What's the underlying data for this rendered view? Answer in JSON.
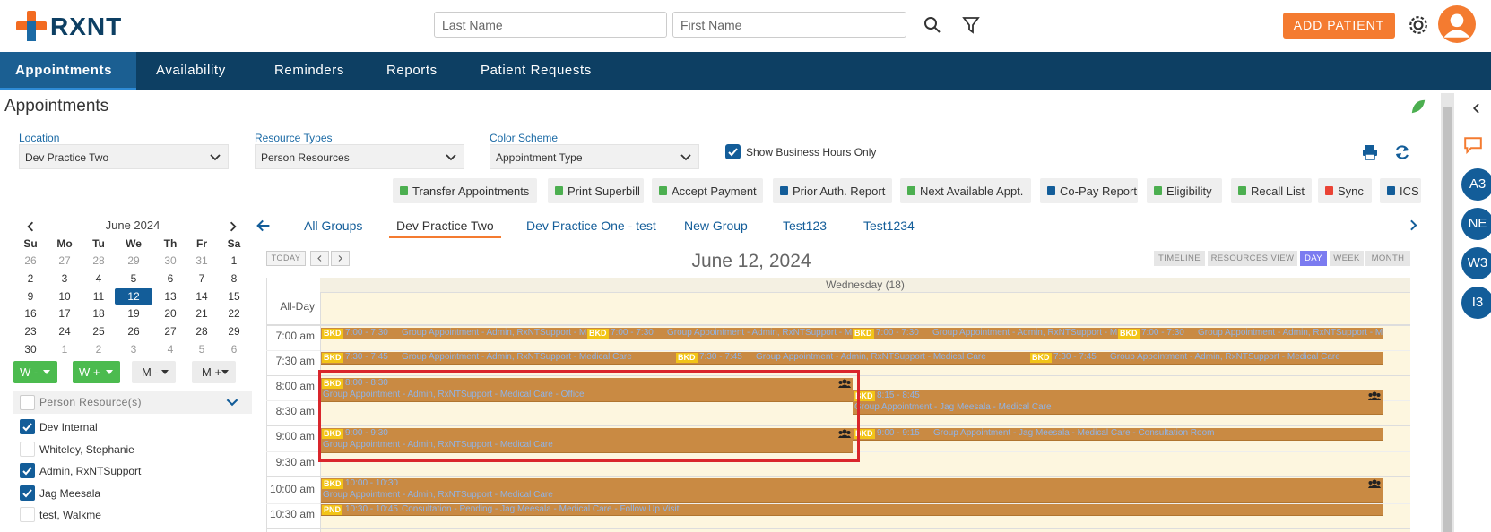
{
  "header": {
    "logo": "RXNT",
    "search_last": "Last Name",
    "search_first": "First Name",
    "add_patient": "ADD PATIENT"
  },
  "nav": [
    {
      "label": "Appointments",
      "active": true
    },
    {
      "label": "Availability",
      "active": false
    },
    {
      "label": "Reminders",
      "active": false
    },
    {
      "label": "Reports",
      "active": false
    },
    {
      "label": "Patient Requests",
      "active": false
    }
  ],
  "page_title": "Appointments",
  "filters": [
    {
      "label": "Location",
      "value": "Dev Practice Two"
    },
    {
      "label": "Resource Types",
      "value": "Person Resources"
    },
    {
      "label": "Color Scheme",
      "value": "Appointment Type"
    }
  ],
  "business_hours": {
    "label": "Show Business Hours Only",
    "checked": true
  },
  "actions": [
    "Transfer Appointments",
    "Print Superbill",
    "Accept Payment",
    "Prior Auth. Report",
    "Next Available Appt.",
    "Co-Pay Report",
    "Eligibility",
    "Recall List",
    "Sync",
    "ICS"
  ],
  "mini_calendar": {
    "month": "June 2024",
    "weekdays": [
      "Su",
      "Mo",
      "Tu",
      "We",
      "Th",
      "Fr",
      "Sa"
    ],
    "weeks": [
      [
        26,
        27,
        28,
        29,
        30,
        31,
        1
      ],
      [
        2,
        3,
        4,
        5,
        6,
        7,
        8
      ],
      [
        9,
        10,
        11,
        12,
        13,
        14,
        15
      ],
      [
        16,
        17,
        18,
        19,
        20,
        21,
        22
      ],
      [
        23,
        24,
        25,
        26,
        27,
        28,
        29
      ],
      [
        30,
        1,
        2,
        3,
        4,
        5,
        6
      ]
    ],
    "selected": 12
  },
  "week_buttons": [
    "W -",
    "W +",
    "M -",
    "M +"
  ],
  "resources": {
    "title": "Person Resource(s)",
    "items": [
      {
        "name": "Dev Internal",
        "checked": true
      },
      {
        "name": "Whiteley, Stephanie",
        "checked": false
      },
      {
        "name": "Admin, RxNTSupport",
        "checked": true
      },
      {
        "name": "Jag Meesala",
        "checked": true
      },
      {
        "name": "test, Walkme",
        "checked": false
      }
    ]
  },
  "groups": [
    {
      "label": "All Groups",
      "active": false
    },
    {
      "label": "Dev Practice Two",
      "active": true
    },
    {
      "label": "Dev Practice One - test",
      "active": false
    },
    {
      "label": "New Group",
      "active": false
    },
    {
      "label": "Test123",
      "active": false
    },
    {
      "label": "Test1234",
      "active": false
    }
  ],
  "calendar": {
    "today": "TODAY",
    "date": "June 12, 2024",
    "views": [
      {
        "label": "TIMELINE",
        "active": false
      },
      {
        "label": "RESOURCES VIEW",
        "active": false
      },
      {
        "label": "DAY",
        "active": true
      },
      {
        "label": "WEEK",
        "active": false
      },
      {
        "label": "MONTH",
        "active": false
      }
    ],
    "day_header": "Wednesday (18)",
    "all_day": "All-Day",
    "times": [
      "7:00 am",
      "7:30 am",
      "8:00 am",
      "8:30 am",
      "9:00 am",
      "9:30 am",
      "10:00 am",
      "10:30 am"
    ],
    "appointments": [
      {
        "status": "BKD",
        "time": "7:00 - 7:30",
        "text": "Group Appointment - Admin, RxNTSupport - Medical"
      },
      {
        "status": "BKD",
        "time": "7:00 - 7:30",
        "text": "Group Appointment - Admin, RxNTSupport - Medical"
      },
      {
        "status": "BKD",
        "time": "7:00 - 7:30",
        "text": "Group Appointment - Admin, RxNTSupport - Medical"
      },
      {
        "status": "BKD",
        "time": "7:00 - 7:30",
        "text": "Group Appointment - Admin, RxNTSupport - Medical"
      },
      {
        "status": "BKD",
        "time": "7:30 - 7:45",
        "text": "Group Appointment - Admin, RxNTSupport - Medical Care"
      },
      {
        "status": "BKD",
        "time": "7:30 - 7:45",
        "text": "Group Appointment - Admin, RxNTSupport - Medical Care"
      },
      {
        "status": "BKD",
        "time": "7:30 - 7:45",
        "text": "Group Appointment - Admin, RxNTSupport - Medical Care"
      },
      {
        "status": "BKD",
        "time": "8:00 - 8:30",
        "text": "Group Appointment - Admin, RxNTSupport - Medical Care - Office"
      },
      {
        "status": "BKD",
        "time": "8:15 - 8:45",
        "text": "Group Appointment - Jag Meesala - Medical Care"
      },
      {
        "status": "BKD",
        "time": "9:00 - 9:30",
        "text": "Group Appointment - Admin, RxNTSupport - Medical Care"
      },
      {
        "status": "BKD",
        "time": "9:00 - 9:15",
        "text": "Group Appointment - Jag Meesala - Medical Care - Consultation Room"
      },
      {
        "status": "BKD",
        "time": "10:00 - 10:30",
        "text": "Group Appointment - Admin, RxNTSupport - Medical Care"
      },
      {
        "status": "PND",
        "time": "10:30 - 10:45",
        "text": "Consultation - Pending - Jag Meesala - Medical Care - Follow Up Visit"
      }
    ]
  },
  "sidebar": [
    "A3",
    "NE",
    "W3",
    "I3"
  ]
}
